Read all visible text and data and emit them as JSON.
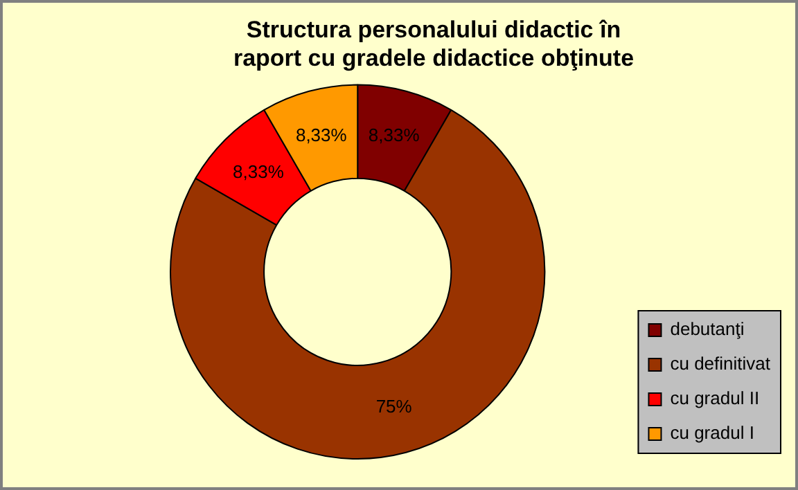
{
  "chart_data": {
    "type": "donut",
    "title": "Structura personalului didactic în raport cu gradele didactice obţinute",
    "categories": [
      "debutanţi",
      "cu definitivat",
      "cu gradul II",
      "cu gradul I"
    ],
    "values": [
      8.33,
      75,
      8.33,
      8.33
    ],
    "value_labels": [
      "8,33%",
      "75%",
      "8,33%",
      "8,33%"
    ],
    "colors": [
      "#800000",
      "#993300",
      "#ff0000",
      "#ff9900"
    ],
    "legend": "right"
  }
}
